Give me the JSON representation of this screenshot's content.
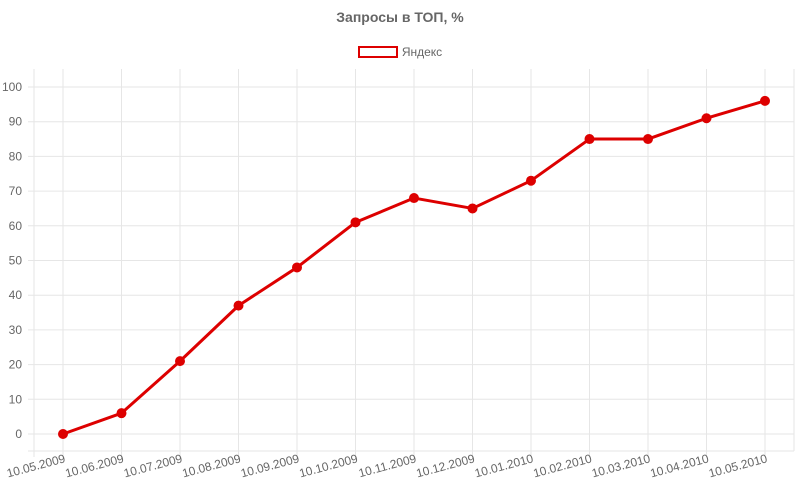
{
  "chart_data": {
    "type": "line",
    "title": "Запросы в ТОП, %",
    "xlabel": "",
    "ylabel": "",
    "categories": [
      "10.05.2009",
      "10.06.2009",
      "10.07.2009",
      "10.08.2009",
      "10.09.2009",
      "10.10.2009",
      "10.11.2009",
      "10.12.2009",
      "10.01.2010",
      "10.02.2010",
      "10.03.2010",
      "10.04.2010",
      "10.05.2010"
    ],
    "series": [
      {
        "name": "Яндекс",
        "values": [
          0,
          6,
          21,
          37,
          48,
          61,
          68,
          65,
          73,
          85,
          85,
          91,
          96
        ],
        "color": "#dd0000"
      }
    ],
    "ylim": [
      0,
      100
    ],
    "yticks": [
      0,
      10,
      20,
      30,
      40,
      50,
      60,
      70,
      80,
      90,
      100
    ],
    "grid": true,
    "legend_position": "top"
  }
}
